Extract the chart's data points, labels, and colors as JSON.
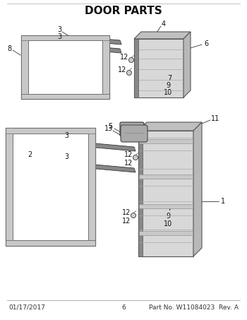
{
  "title": "DOOR PARTS",
  "footer_left": "01/17/2017",
  "footer_center": "6",
  "footer_right": "Part No. W11084023  Rev. A",
  "bg_color": "#ffffff",
  "title_fontsize": 11,
  "footer_fontsize": 6.5,
  "label_fontsize": 7
}
